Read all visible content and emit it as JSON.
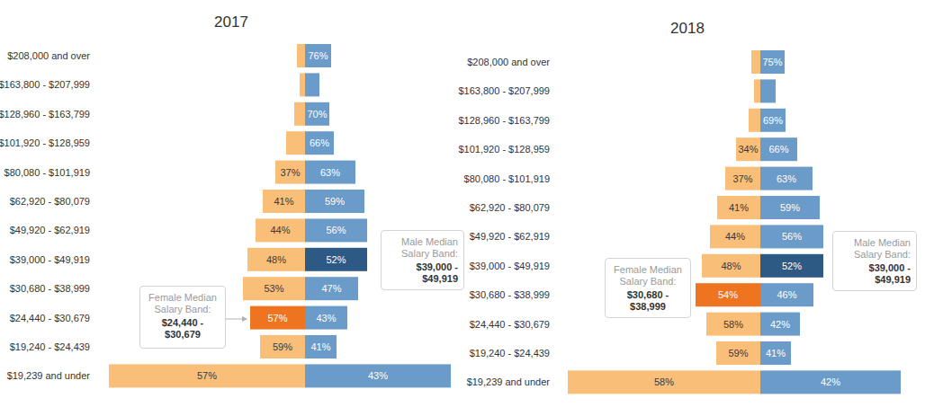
{
  "chart_data": [
    {
      "type": "bar",
      "title": "2017",
      "orientation": "horizontal",
      "tick_labels": "y",
      "categories": [
        "$208,000 and over",
        "$163,800 - $207,999",
        "$128,960 - $163,799",
        "$101,920 - $128,959",
        "$80,080 - $101,919",
        "$62,920 - $80,079",
        "$49,920 - $62,919",
        "$39,000 - $49,919",
        "$30,680 - $38,999",
        "$24,440 - $30,679",
        "$19,240 - $24,439",
        "$19,239 and under"
      ],
      "xlim": [
        0,
        220
      ],
      "series": [
        {
          "values": [
            9,
            6,
            12,
            21,
            33,
            47,
            55,
            64,
            69,
            61,
            50,
            218
          ],
          "shares": [
            null,
            null,
            null,
            null,
            37,
            41,
            44,
            48,
            53,
            57,
            59,
            57
          ],
          "colors": [
            "#f9be78",
            "#f9be78",
            "#f9be78",
            "#f9be78",
            "#f9be78",
            "#f9be78",
            "#f9be78",
            "#f9be78",
            "#f9be78",
            "#ee7420",
            "#f9be78",
            "#f9be78"
          ]
        },
        {
          "values": [
            29,
            16,
            27,
            32,
            56,
            66,
            69,
            69,
            59,
            47,
            35,
            162
          ],
          "shares": [
            76,
            null,
            70,
            66,
            63,
            59,
            56,
            52,
            47,
            43,
            41,
            43
          ],
          "colors": [
            "#6b9bc9",
            "#6b9bc9",
            "#6b9bc9",
            "#6b9bc9",
            "#6b9bc9",
            "#6b9bc9",
            "#6b9bc9",
            "#2d5985",
            "#6b9bc9",
            "#6b9bc9",
            "#6b9bc9",
            "#6b9bc9"
          ]
        }
      ],
      "annotations": [
        {
          "text": "Female Median Salary Band:",
          "value": "$24,440 - $30,679"
        },
        {
          "text": "Male Median Salary Band:",
          "value": "$39,000 - $49,919"
        }
      ]
    },
    {
      "type": "bar",
      "title": "2018",
      "orientation": "horizontal",
      "tick_labels": "y",
      "categories": [
        "$208,000 and over",
        "$163,800 - $207,999",
        "$128,960 - $163,799",
        "$101,920 - $128,959",
        "$80,080 - $101,919",
        "$62,920 - $80,079",
        "$49,920 - $62,919",
        "$39,000 - $49,919",
        "$30,680 - $38,999",
        "$24,440 - $30,679",
        "$19,240 - $24,439",
        "$19,239 and under"
      ],
      "xlim": [
        0,
        220
      ],
      "series": [
        {
          "values": [
            10,
            7,
            13,
            27,
            39,
            48,
            56,
            65,
            72,
            60,
            49,
            214
          ],
          "shares": [
            null,
            null,
            null,
            34,
            37,
            41,
            44,
            48,
            54,
            58,
            59,
            58
          ],
          "colors": [
            "#f9be78",
            "#f9be78",
            "#f9be78",
            "#f9be78",
            "#f9be78",
            "#f9be78",
            "#f9be78",
            "#f9be78",
            "#ee7420",
            "#f9be78",
            "#f9be78",
            "#f9be78"
          ]
        },
        {
          "values": [
            27,
            17,
            28,
            41,
            58,
            66,
            70,
            70,
            59,
            44,
            34,
            156
          ],
          "shares": [
            75,
            null,
            69,
            66,
            63,
            59,
            56,
            52,
            46,
            42,
            41,
            42
          ],
          "colors": [
            "#6b9bc9",
            "#6b9bc9",
            "#6b9bc9",
            "#6b9bc9",
            "#6b9bc9",
            "#6b9bc9",
            "#6b9bc9",
            "#2d5985",
            "#6b9bc9",
            "#6b9bc9",
            "#6b9bc9",
            "#6b9bc9"
          ]
        }
      ],
      "annotations": [
        {
          "text": "Female Median Salary Band:",
          "value": "$30,680 - $38,999"
        },
        {
          "text": "Male Median Salary Band:",
          "value": "$39,000 - $49,919"
        }
      ]
    }
  ]
}
